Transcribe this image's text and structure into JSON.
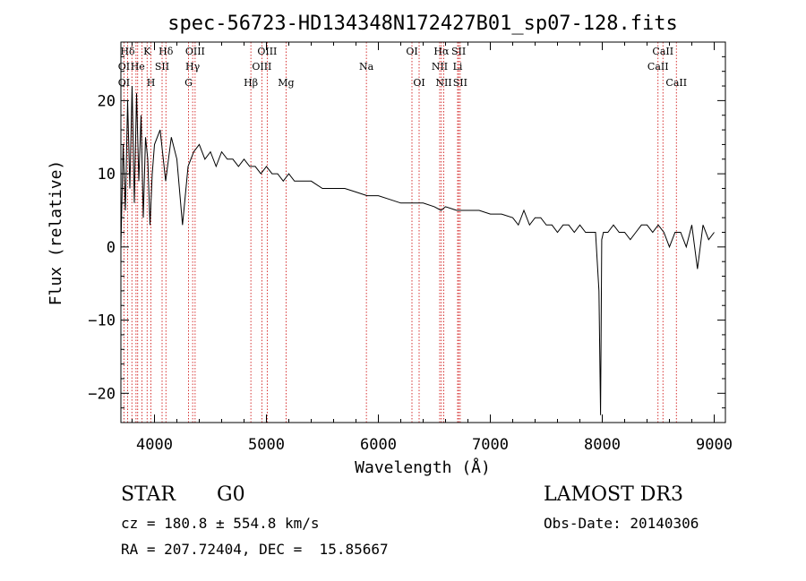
{
  "chart_data": {
    "type": "line",
    "title": "spec-56723-HD134348N172427B01_sp07-128.fits",
    "xlabel": "Wavelength (Å)",
    "ylabel": "Flux (relative)",
    "xlim": [
      3700,
      9100
    ],
    "ylim": [
      -24,
      28
    ],
    "xticks": [
      4000,
      5000,
      6000,
      7000,
      8000,
      9000
    ],
    "yticks": [
      -20,
      -10,
      0,
      10,
      20
    ],
    "grid": false,
    "series": [
      {
        "x": [
          3700,
          3720,
          3740,
          3760,
          3780,
          3800,
          3820,
          3840,
          3860,
          3880,
          3900,
          3920,
          3940,
          3960,
          3980,
          4000,
          4050,
          4100,
          4150,
          4200,
          4250,
          4300,
          4350,
          4400,
          4450,
          4500,
          4550,
          4600,
          4650,
          4700,
          4750,
          4800,
          4850,
          4900,
          4950,
          5000,
          5050,
          5100,
          5150,
          5200,
          5250,
          5300,
          5400,
          5500,
          5600,
          5700,
          5800,
          5900,
          6000,
          6100,
          6200,
          6300,
          6400,
          6500,
          6560,
          6600,
          6700,
          6800,
          6900,
          7000,
          7100,
          7200,
          7250,
          7300,
          7350,
          7400,
          7450,
          7500,
          7550,
          7600,
          7650,
          7700,
          7750,
          7800,
          7850,
          7900,
          7940,
          7970,
          7985,
          7995,
          8010,
          8050,
          8100,
          8150,
          8200,
          8250,
          8300,
          8350,
          8400,
          8450,
          8500,
          8550,
          8600,
          8650,
          8700,
          8750,
          8800,
          8850,
          8900,
          8950,
          9000
        ],
        "y": [
          0,
          14,
          5,
          20,
          8,
          22,
          6,
          21,
          9,
          18,
          4,
          15,
          12,
          3,
          10,
          14,
          16,
          9,
          15,
          12,
          3,
          11,
          13,
          14,
          12,
          13,
          11,
          13,
          12,
          12,
          11,
          12,
          11,
          11,
          10,
          11,
          10,
          10,
          9,
          10,
          9,
          9,
          9,
          8,
          8,
          8,
          7.5,
          7,
          7,
          6.5,
          6,
          6,
          6,
          5.5,
          5,
          5.5,
          5,
          5,
          5,
          4.5,
          4.5,
          4,
          3,
          5,
          3,
          4,
          4,
          3,
          3,
          2,
          3,
          3,
          2,
          3,
          2,
          2,
          2,
          -6,
          -23,
          1,
          2,
          2,
          3,
          2,
          2,
          1,
          2,
          3,
          3,
          2,
          3,
          2,
          0,
          2,
          2,
          0,
          3,
          -3,
          3,
          1,
          2
        ]
      }
    ],
    "lines": [
      {
        "label": "Hδ",
        "wl": 3760,
        "row": 0
      },
      {
        "label": "K",
        "wl": 3934,
        "row": 0
      },
      {
        "label": "Hδ",
        "wl": 4102,
        "row": 0
      },
      {
        "label": "OIII",
        "wl": 4363,
        "row": 0
      },
      {
        "label": "OIII",
        "wl": 5007,
        "row": 0
      },
      {
        "label": "OI",
        "wl": 6300,
        "row": 0
      },
      {
        "label": "Hα",
        "wl": 6563,
        "row": 0
      },
      {
        "label": "SII",
        "wl": 6717,
        "row": 0
      },
      {
        "label": "CaII",
        "wl": 8542,
        "row": 0
      },
      {
        "label": "OI",
        "wl": 3727,
        "row": 1
      },
      {
        "label": "He",
        "wl": 3850,
        "row": 1
      },
      {
        "label": "SII",
        "wl": 4068,
        "row": 1
      },
      {
        "label": "Hγ",
        "wl": 4341,
        "row": 1
      },
      {
        "label": "OIII",
        "wl": 4959,
        "row": 1
      },
      {
        "label": "Na",
        "wl": 5893,
        "row": 1
      },
      {
        "label": "NII",
        "wl": 6548,
        "row": 1
      },
      {
        "label": "Li",
        "wl": 6708,
        "row": 1
      },
      {
        "label": "CaII",
        "wl": 8498,
        "row": 1
      },
      {
        "label": "OI",
        "wl": 3727,
        "row": 2
      },
      {
        "label": "H",
        "wl": 3968,
        "row": 2
      },
      {
        "label": "G",
        "wl": 4304,
        "row": 2
      },
      {
        "label": "Hβ",
        "wl": 4861,
        "row": 2
      },
      {
        "label": "Mg",
        "wl": 5175,
        "row": 2
      },
      {
        "label": "OI",
        "wl": 6364,
        "row": 2
      },
      {
        "label": "NII",
        "wl": 6584,
        "row": 2
      },
      {
        "label": "SII",
        "wl": 6731,
        "row": 2
      },
      {
        "label": "CaII",
        "wl": 8662,
        "row": 2
      }
    ],
    "extra_lines_wl": [
      3798,
      3835,
      3889
    ]
  },
  "info": {
    "class": "STAR",
    "subclass": "G0",
    "survey": "LAMOST DR3",
    "cz": "cz = 180.8 ± 554.8 km/s",
    "obsdate": "Obs-Date: 20140306",
    "radec": "RA = 207.72404, DEC =  15.85667"
  }
}
